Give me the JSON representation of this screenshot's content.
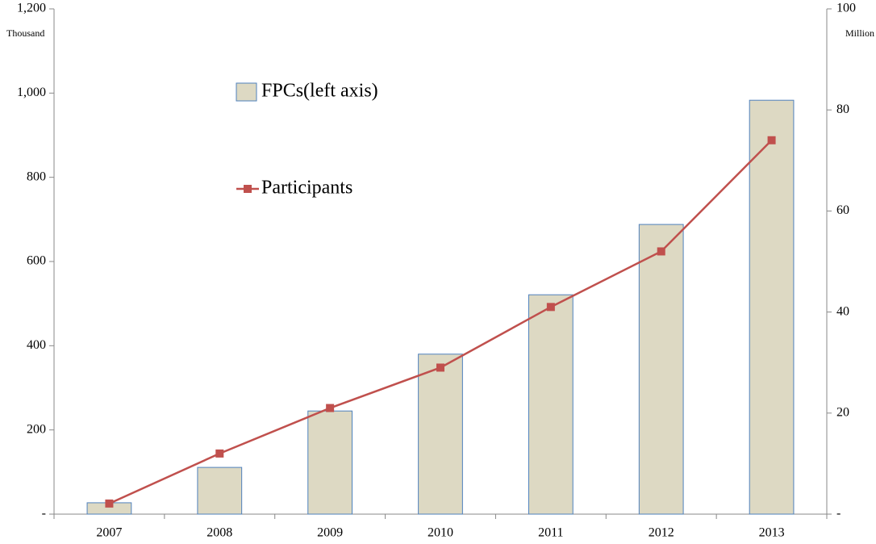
{
  "chart_data": {
    "type": "combo",
    "ylabel": "Thousand",
    "y2label": "Million",
    "categories": [
      "2007",
      "2008",
      "2009",
      "2010",
      "2011",
      "2012",
      "2013"
    ],
    "series": [
      {
        "name": "FPCs(left axis)",
        "type": "bar",
        "color": "#ddd9c3",
        "edge_color": "#4f81bd",
        "values": [
          27,
          111,
          245,
          380,
          521,
          688,
          983
        ]
      },
      {
        "name": "Participants",
        "type": "line",
        "axis": "y2",
        "color": "#c0504d",
        "values": [
          2.1,
          12,
          21,
          29,
          41,
          52,
          74
        ]
      }
    ],
    "ylim": [
      0,
      1200
    ],
    "yticks": [
      {
        "value": 0,
        "label": "-"
      },
      200,
      400,
      600,
      800,
      {
        "value": 1000,
        "label": "1,000"
      },
      {
        "value": 1200,
        "label": "1,200"
      }
    ],
    "y2lim": [
      0,
      100
    ],
    "y2ticks": [
      {
        "value": 0,
        "label": "-"
      },
      20,
      40,
      60,
      80,
      100
    ],
    "grid": false
  }
}
